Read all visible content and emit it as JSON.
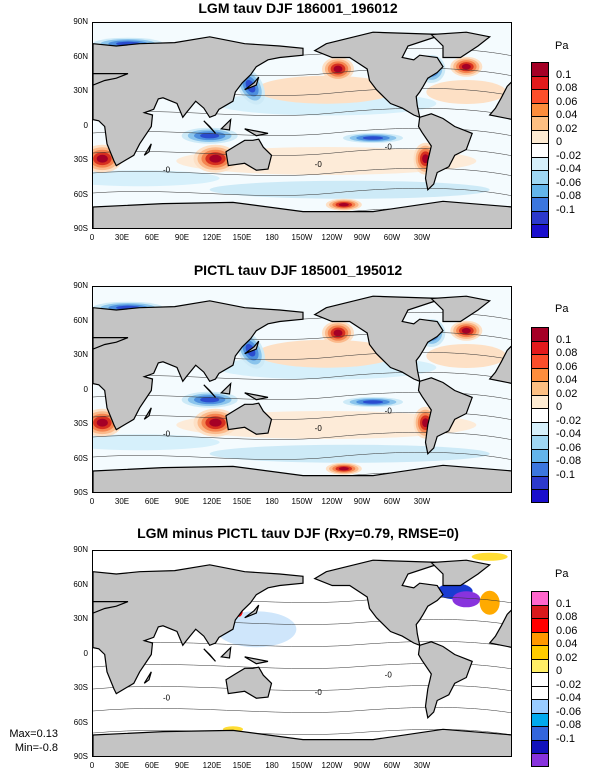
{
  "panels": [
    {
      "title": "LGM tauv DJF 186001_196012"
    },
    {
      "title": "PICTL tauv DJF 185001_195012"
    },
    {
      "title": "LGM minus PICTL tauv DJF (Rxy=0.79, RMSE=0)"
    }
  ],
  "lat_ticks": [
    "90N",
    "60N",
    "30N",
    "0",
    "30S",
    "60S",
    "90S"
  ],
  "lon_ticks": [
    "0",
    "30E",
    "60E",
    "90E",
    "120E",
    "150E",
    "180",
    "150W",
    "120W",
    "90W",
    "60W",
    "30W"
  ],
  "contour_label": "-0",
  "colorbar": {
    "unit": "Pa",
    "labels": [
      "0.1",
      "0.08",
      "0.06",
      "0.04",
      "0.02",
      "0",
      "-0.02",
      "-0.04",
      "-0.06",
      "-0.08",
      "-0.1"
    ],
    "colors_top": [
      "#a50026",
      "#e31a1c",
      "#fc4e2a",
      "#fd8d3c",
      "#fdbf82",
      "#feebd2",
      "#ffffff",
      "#d6f0fb",
      "#9fd7f3",
      "#63b4ea",
      "#3b76de",
      "#2c39cc",
      "#1a0ecc"
    ],
    "colors_diff": [
      "#ff66cc",
      "#d7191c",
      "#ff0000",
      "#ff9900",
      "#ffcc00",
      "#ffee66",
      "#ffffff",
      "#ffffff",
      "#99ccff",
      "#00aaee",
      "#3366dd",
      "#1111bb",
      "#8833dd"
    ]
  },
  "stats": {
    "max": "Max=0.13",
    "min": "Min=-0.8"
  }
}
